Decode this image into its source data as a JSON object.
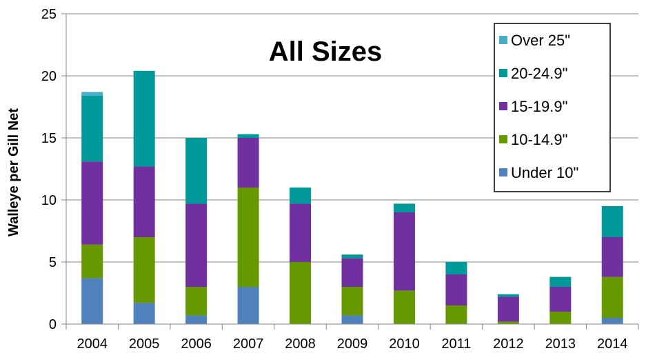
{
  "chart_data": {
    "type": "bar",
    "stacked": true,
    "title": "All Sizes",
    "xlabel": "",
    "ylabel": "Walleye per Gill Net",
    "ylim": [
      0,
      25
    ],
    "yticks": [
      0,
      5,
      10,
      15,
      20,
      25
    ],
    "grid": true,
    "legend_position": "top-right",
    "categories": [
      "2004",
      "2005",
      "2006",
      "2007",
      "2008",
      "2009",
      "2010",
      "2011",
      "2012",
      "2013",
      "2014"
    ],
    "series": [
      {
        "name": "Under 10\"",
        "color": "#4f81bd",
        "values": [
          3.7,
          1.7,
          0.7,
          3.0,
          0.0,
          0.7,
          0.0,
          0.0,
          0.0,
          0.0,
          0.5
        ]
      },
      {
        "name": "10-14.9\"",
        "color": "#669900",
        "values": [
          2.7,
          5.3,
          2.3,
          8.0,
          5.0,
          2.3,
          2.7,
          1.5,
          0.2,
          1.0,
          3.3
        ]
      },
      {
        "name": "15-19.9\"",
        "color": "#7030a0",
        "values": [
          6.7,
          5.7,
          6.7,
          4.0,
          4.7,
          2.3,
          6.3,
          2.5,
          2.0,
          2.0,
          3.2
        ]
      },
      {
        "name": "20-24.9\"",
        "color": "#009999",
        "values": [
          5.3,
          7.7,
          5.3,
          0.3,
          1.3,
          0.3,
          0.7,
          1.0,
          0.2,
          0.8,
          2.5
        ]
      },
      {
        "name": "Over  25\"",
        "color": "#4bacc6",
        "values": [
          0.3,
          0.0,
          0.0,
          0.0,
          0.0,
          0.0,
          0.0,
          0.0,
          0.0,
          0.0,
          0.0
        ]
      }
    ]
  }
}
